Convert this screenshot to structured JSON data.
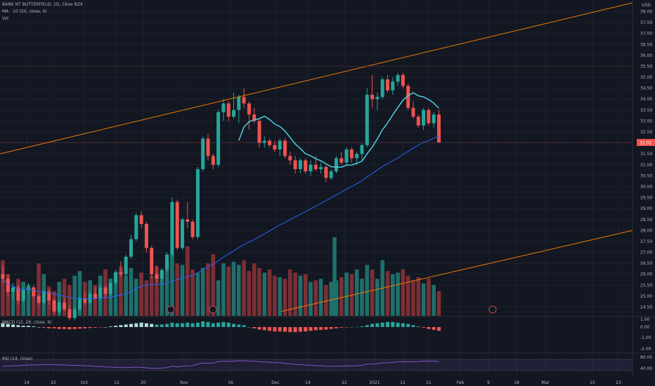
{
  "header": {
    "symbol": "BANK NT BUTTERFIELD, 1D, Cboe BZX",
    "ma_label": "MA · 10 (50, close, 0)",
    "vol_label": "Vol"
  },
  "macd": {
    "label": "MACD (12, 26, close, 9)"
  },
  "rsi": {
    "label": "RSI (14, close)"
  },
  "price_axis": {
    "currency": "USD",
    "current_price": "32.02",
    "current_price_color": "#ef5350"
  },
  "colors": {
    "up": "#26a69a",
    "down": "#ef5350",
    "vol_up": "#1f6f6a",
    "vol_down": "#7c2f35",
    "ma_fast": "#4dd0e1",
    "ma_slow": "#2962ff",
    "trend": "#f57c00",
    "rsi": "#7e57c2",
    "grid": "#1e222d"
  },
  "chart_data": [
    {
      "type": "candlestick",
      "title": "BANK NT BUTTERFIELD, 1D, Cboe BZX",
      "y_ticks": [
        "38.00",
        "37.50",
        "37.00",
        "36.50",
        "36.00",
        "35.50",
        "35.00",
        "34.50",
        "34.00",
        "33.50",
        "33.00",
        "32.50",
        "32.00",
        "31.50",
        "31.00",
        "30.50",
        "30.00",
        "29.50",
        "29.00",
        "28.50",
        "28.00",
        "27.50",
        "27.00",
        "26.50",
        "26.00",
        "25.50",
        "25.00",
        "24.50"
      ],
      "x_ticks": [
        "14",
        "22",
        "Oct",
        "12",
        "20",
        "Nov",
        "16",
        "Dec",
        "14",
        "22",
        "2021",
        "12",
        "21",
        "Feb",
        "9",
        "18",
        "Mar",
        "15",
        "23"
      ],
      "ylim": [
        24.1,
        38.4
      ],
      "candles": [
        [
          26.0,
          26.4,
          25.6,
          25.8
        ],
        [
          25.8,
          26.0,
          25.0,
          25.2
        ],
        [
          25.2,
          25.6,
          24.9,
          25.4
        ],
        [
          25.4,
          25.5,
          24.6,
          24.8
        ],
        [
          24.8,
          25.4,
          24.7,
          25.3
        ],
        [
          25.3,
          25.6,
          25.1,
          25.4
        ],
        [
          25.4,
          25.5,
          24.9,
          25.0
        ],
        [
          25.0,
          25.1,
          24.6,
          24.7
        ],
        [
          24.7,
          25.3,
          24.6,
          25.2
        ],
        [
          25.2,
          25.3,
          24.6,
          24.8
        ],
        [
          24.8,
          24.9,
          24.2,
          24.3
        ],
        [
          24.3,
          24.8,
          24.2,
          24.7
        ],
        [
          24.7,
          24.9,
          24.3,
          24.4
        ],
        [
          24.4,
          24.6,
          23.9,
          24.0
        ],
        [
          24.0,
          24.5,
          23.9,
          24.4
        ],
        [
          24.4,
          25.0,
          24.3,
          24.9
        ],
        [
          24.9,
          25.2,
          24.6,
          24.7
        ],
        [
          24.7,
          25.2,
          24.6,
          25.1
        ],
        [
          25.1,
          25.4,
          24.8,
          24.9
        ],
        [
          24.9,
          25.5,
          24.8,
          25.4
        ],
        [
          25.4,
          25.5,
          24.9,
          25.1
        ],
        [
          25.1,
          25.8,
          25.0,
          25.6
        ],
        [
          25.6,
          26.2,
          25.5,
          26.1
        ],
        [
          26.1,
          26.6,
          25.9,
          26.0
        ],
        [
          26.0,
          26.9,
          25.9,
          26.8
        ],
        [
          26.8,
          27.8,
          26.7,
          27.6
        ],
        [
          27.6,
          28.8,
          27.5,
          28.7
        ],
        [
          28.7,
          28.9,
          28.1,
          28.3
        ],
        [
          28.3,
          28.4,
          27.0,
          27.2
        ],
        [
          27.2,
          27.3,
          25.8,
          26.0
        ],
        [
          26.0,
          26.4,
          25.6,
          25.8
        ],
        [
          25.8,
          26.3,
          25.5,
          26.2
        ],
        [
          26.2,
          27.0,
          26.1,
          26.9
        ],
        [
          26.9,
          29.5,
          26.8,
          29.3
        ],
        [
          29.3,
          29.4,
          27.1,
          27.2
        ],
        [
          27.2,
          28.6,
          27.1,
          28.5
        ],
        [
          28.5,
          29.3,
          28.1,
          28.4
        ],
        [
          28.4,
          28.5,
          27.6,
          27.7
        ],
        [
          27.7,
          30.9,
          27.6,
          30.8
        ],
        [
          30.8,
          32.3,
          30.7,
          32.2
        ],
        [
          32.2,
          32.4,
          31.2,
          31.4
        ],
        [
          31.4,
          31.5,
          30.8,
          31.0
        ],
        [
          31.0,
          33.5,
          30.9,
          33.4
        ],
        [
          33.4,
          34.0,
          33.0,
          33.8
        ],
        [
          33.8,
          33.9,
          33.0,
          33.2
        ],
        [
          33.2,
          34.3,
          33.1,
          33.5
        ],
        [
          33.5,
          34.2,
          32.9,
          34.1
        ],
        [
          34.1,
          34.5,
          33.6,
          33.8
        ],
        [
          33.8,
          33.9,
          32.6,
          33.3
        ],
        [
          33.3,
          33.6,
          32.9,
          33.0
        ],
        [
          33.0,
          33.1,
          31.8,
          32.0
        ],
        [
          32.0,
          32.3,
          31.8,
          32.1
        ],
        [
          32.1,
          32.2,
          31.8,
          31.9
        ],
        [
          31.9,
          32.1,
          31.6,
          31.7
        ],
        [
          31.7,
          32.2,
          31.4,
          32.1
        ],
        [
          32.1,
          32.2,
          31.3,
          31.4
        ],
        [
          31.4,
          31.6,
          31.0,
          31.2
        ],
        [
          31.2,
          31.4,
          30.6,
          30.8
        ],
        [
          30.8,
          31.3,
          30.6,
          31.2
        ],
        [
          31.2,
          31.3,
          30.6,
          30.7
        ],
        [
          30.7,
          31.2,
          30.5,
          31.0
        ],
        [
          31.0,
          31.4,
          30.7,
          30.8
        ],
        [
          30.8,
          31.1,
          30.6,
          30.9
        ],
        [
          30.9,
          31.0,
          30.2,
          30.4
        ],
        [
          30.4,
          30.8,
          30.3,
          30.7
        ],
        [
          30.7,
          31.4,
          30.6,
          31.3
        ],
        [
          31.3,
          31.6,
          31.0,
          31.1
        ],
        [
          31.1,
          31.8,
          31.0,
          31.7
        ],
        [
          31.7,
          31.8,
          31.1,
          31.3
        ],
        [
          31.3,
          31.6,
          31.0,
          31.5
        ],
        [
          31.5,
          32.0,
          31.2,
          31.9
        ],
        [
          31.9,
          34.5,
          31.8,
          34.2
        ],
        [
          34.2,
          35.1,
          33.6,
          34.0
        ],
        [
          34.0,
          34.3,
          33.5,
          34.1
        ],
        [
          34.1,
          35.0,
          34.0,
          34.9
        ],
        [
          34.9,
          35.1,
          34.3,
          34.4
        ],
        [
          34.4,
          35.0,
          34.2,
          34.8
        ],
        [
          34.8,
          35.2,
          34.6,
          35.1
        ],
        [
          35.1,
          35.2,
          34.5,
          34.6
        ],
        [
          34.6,
          34.7,
          33.5,
          33.6
        ],
        [
          33.6,
          33.9,
          33.1,
          33.2
        ],
        [
          33.2,
          33.3,
          32.7,
          32.8
        ],
        [
          32.8,
          33.6,
          32.6,
          33.5
        ],
        [
          33.5,
          33.6,
          32.8,
          32.9
        ],
        [
          32.9,
          33.4,
          32.7,
          33.3
        ],
        [
          33.3,
          33.5,
          32.0,
          32.02
        ]
      ],
      "volume": [
        36,
        27,
        18,
        24,
        22,
        20,
        18,
        34,
        27,
        19,
        16,
        22,
        24,
        20,
        26,
        29,
        22,
        23,
        20,
        26,
        30,
        24,
        28,
        32,
        26,
        31,
        24,
        28,
        23,
        26,
        32,
        29,
        36,
        40,
        34,
        33,
        45,
        30,
        28,
        31,
        34,
        40,
        23,
        34,
        32,
        35,
        33,
        36,
        29,
        34,
        31,
        28,
        30,
        26,
        25,
        24,
        30,
        28,
        26,
        27,
        22,
        23,
        24,
        20,
        22,
        23,
        25,
        28,
        27,
        30,
        24,
        33,
        30,
        24,
        36,
        29,
        27,
        28,
        30,
        26,
        23,
        25,
        21,
        24,
        20,
        16
      ],
      "macd_hist": [
        0.6,
        0.5,
        0.4,
        0.3,
        0.2,
        0.2,
        0.1,
        0.0,
        -0.1,
        -0.2,
        -0.2,
        -0.3,
        -0.3,
        -0.35,
        -0.3,
        -0.25,
        -0.2,
        -0.15,
        -0.1,
        -0.05,
        0.0,
        0.1,
        0.2,
        0.3,
        0.4,
        0.5,
        0.6,
        0.7,
        0.6,
        0.5,
        0.4,
        0.4,
        0.5,
        0.7,
        0.6,
        0.6,
        0.7,
        0.6,
        0.7,
        0.9,
        0.8,
        0.6,
        0.7,
        0.8,
        0.7,
        0.5,
        0.4,
        0.3,
        0.0,
        -0.2,
        -0.4,
        -0.5,
        -0.6,
        -0.7,
        -0.7,
        -0.75,
        -0.8,
        -0.8,
        -0.75,
        -0.7,
        -0.6,
        -0.5,
        -0.45,
        -0.4,
        -0.3,
        -0.2,
        -0.1,
        -0.05,
        0.0,
        0.05,
        0.1,
        0.3,
        0.5,
        0.6,
        0.7,
        0.8,
        0.8,
        0.7,
        0.6,
        0.5,
        0.3,
        0.1,
        -0.1,
        -0.3,
        -0.45,
        -0.6
      ],
      "macd_yticks": [
        "1.00",
        "0.00",
        "-1.00",
        "-2.00"
      ],
      "rsi_yticks": [
        "80.00",
        "40.00"
      ]
    }
  ]
}
